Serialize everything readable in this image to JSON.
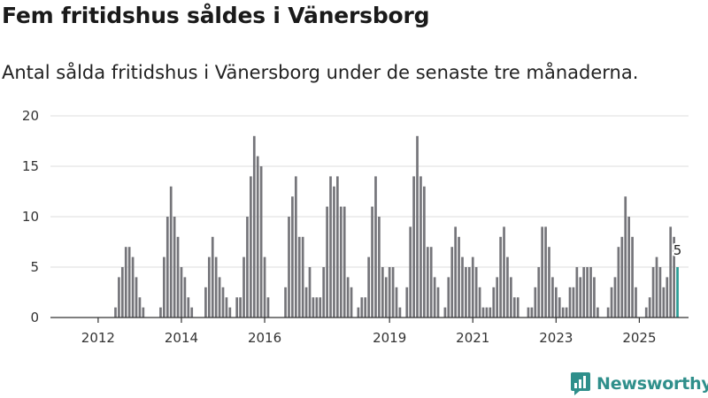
{
  "header": {
    "title": "Fem fritidshus såldes i Vänersborg",
    "subtitle": "Antal sålda fritidshus i Vänersborg under de senaste tre månaderna."
  },
  "brand": {
    "name": "Newsworthy",
    "color": "#2f8f8b"
  },
  "colors": {
    "bar": "#75757a",
    "highlight": "#2a9d95",
    "grid": "#dcdcdc"
  },
  "chart_data": {
    "type": "bar",
    "title": "Fem fritidshus såldes i Vänersborg",
    "subtitle": "Antal sålda fritidshus i Vänersborg under de senaste tre månaderna.",
    "xlabel": "",
    "ylabel": "",
    "ylim": [
      0,
      20
    ],
    "yticks": [
      0,
      5,
      10,
      15,
      20
    ],
    "grid": true,
    "start": "2011-01",
    "frequency": "monthly",
    "xticks": [
      {
        "label": "2012",
        "index": 12
      },
      {
        "label": "2014",
        "index": 36
      },
      {
        "label": "2016",
        "index": 60
      },
      {
        "label": "2019",
        "index": 96
      },
      {
        "label": "2021",
        "index": 120
      },
      {
        "label": "2023",
        "index": 144
      },
      {
        "label": "2025",
        "index": 168
      }
    ],
    "values": [
      0,
      0,
      0,
      0,
      0,
      0,
      0,
      0,
      0,
      0,
      0,
      0,
      0,
      0,
      0,
      0,
      0,
      1,
      4,
      5,
      7,
      7,
      6,
      4,
      2,
      1,
      0,
      0,
      0,
      0,
      1,
      6,
      10,
      13,
      10,
      8,
      5,
      4,
      2,
      1,
      0,
      0,
      0,
      3,
      6,
      8,
      6,
      4,
      3,
      2,
      1,
      0,
      2,
      2,
      6,
      10,
      14,
      18,
      16,
      15,
      6,
      2,
      0,
      0,
      0,
      0,
      3,
      10,
      12,
      14,
      8,
      8,
      3,
      5,
      2,
      2,
      2,
      5,
      11,
      14,
      13,
      14,
      11,
      11,
      4,
      3,
      0,
      1,
      2,
      2,
      6,
      11,
      14,
      10,
      5,
      4,
      5,
      5,
      3,
      1,
      0,
      3,
      9,
      14,
      18,
      14,
      13,
      7,
      7,
      4,
      3,
      0,
      1,
      4,
      7,
      9,
      8,
      6,
      5,
      5,
      6,
      5,
      3,
      1,
      1,
      1,
      3,
      4,
      8,
      9,
      6,
      4,
      2,
      2,
      0,
      0,
      1,
      1,
      3,
      5,
      9,
      9,
      7,
      4,
      3,
      2,
      1,
      1,
      3,
      3,
      5,
      4,
      5,
      5,
      5,
      4,
      1,
      0,
      0,
      1,
      3,
      4,
      7,
      8,
      12,
      10,
      8,
      3,
      0,
      0,
      1,
      2,
      5,
      6,
      5,
      3,
      4,
      9,
      8,
      5
    ],
    "highlight": {
      "index": 179,
      "value": 5,
      "label": "5"
    }
  }
}
